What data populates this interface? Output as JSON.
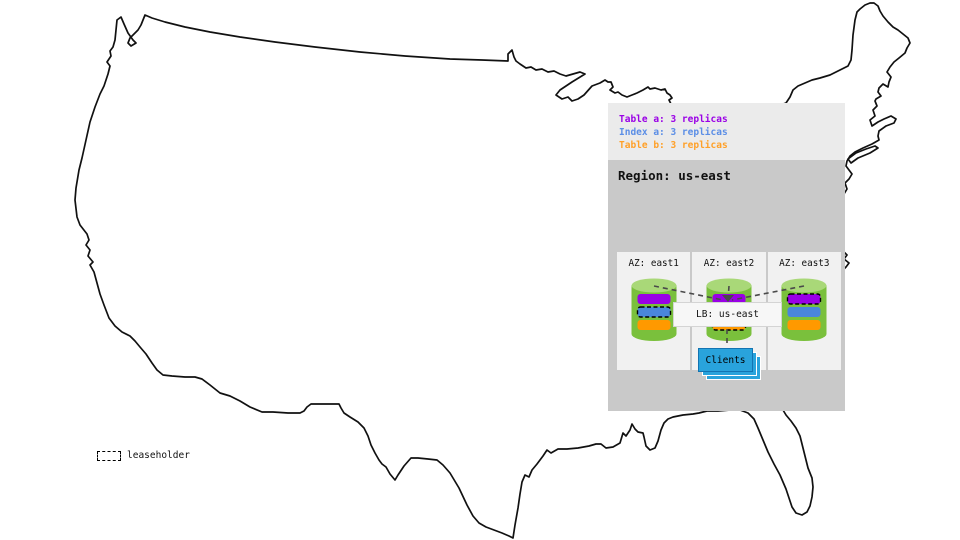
{
  "diagram": {
    "replica_legend": [
      {
        "label": "Table a: 3 replicas",
        "color": "#9a00e6"
      },
      {
        "label": "Index a: 3 replicas",
        "color": "#5b8ee6"
      },
      {
        "label": "Table b: 3 replicas",
        "color": "#ffa028"
      }
    ],
    "region": {
      "title": "Region: us-east",
      "azs": [
        {
          "label": "AZ: east1",
          "replicas": [
            {
              "name": "table-a-replica",
              "color": "#9900e6",
              "leaseholder": false
            },
            {
              "name": "index-a-replica",
              "color": "#4a86db",
              "leaseholder": true
            },
            {
              "name": "table-b-replica",
              "color": "#ff9900",
              "leaseholder": false
            }
          ]
        },
        {
          "label": "AZ: east2",
          "replicas": [
            {
              "name": "table-a-replica",
              "color": "#9900e6",
              "leaseholder": false
            },
            {
              "name": "index-a-replica",
              "color": "#4a86db",
              "leaseholder": false
            },
            {
              "name": "table-b-replica",
              "color": "#ff9900",
              "leaseholder": true
            }
          ]
        },
        {
          "label": "AZ: east3",
          "replicas": [
            {
              "name": "table-a-replica",
              "color": "#9900e6",
              "leaseholder": true
            },
            {
              "name": "index-a-replica",
              "color": "#4a86db",
              "leaseholder": false
            },
            {
              "name": "table-b-replica",
              "color": "#ff9900",
              "leaseholder": false
            }
          ]
        }
      ],
      "load_balancer": {
        "label": "LB: us-east"
      },
      "clients": {
        "label": "Clients"
      }
    },
    "map_legend": {
      "label": "leaseholder"
    }
  },
  "colors": {
    "cylinder_body": "#7ac03c",
    "cylinder_top": "#a9d878",
    "clients_blue": "#29a3dc",
    "panel_bg": "#ebebeb",
    "region_bg": "#c9c9c9",
    "az_bg": "#f1f1f1",
    "connector": "#4a4a4a"
  }
}
